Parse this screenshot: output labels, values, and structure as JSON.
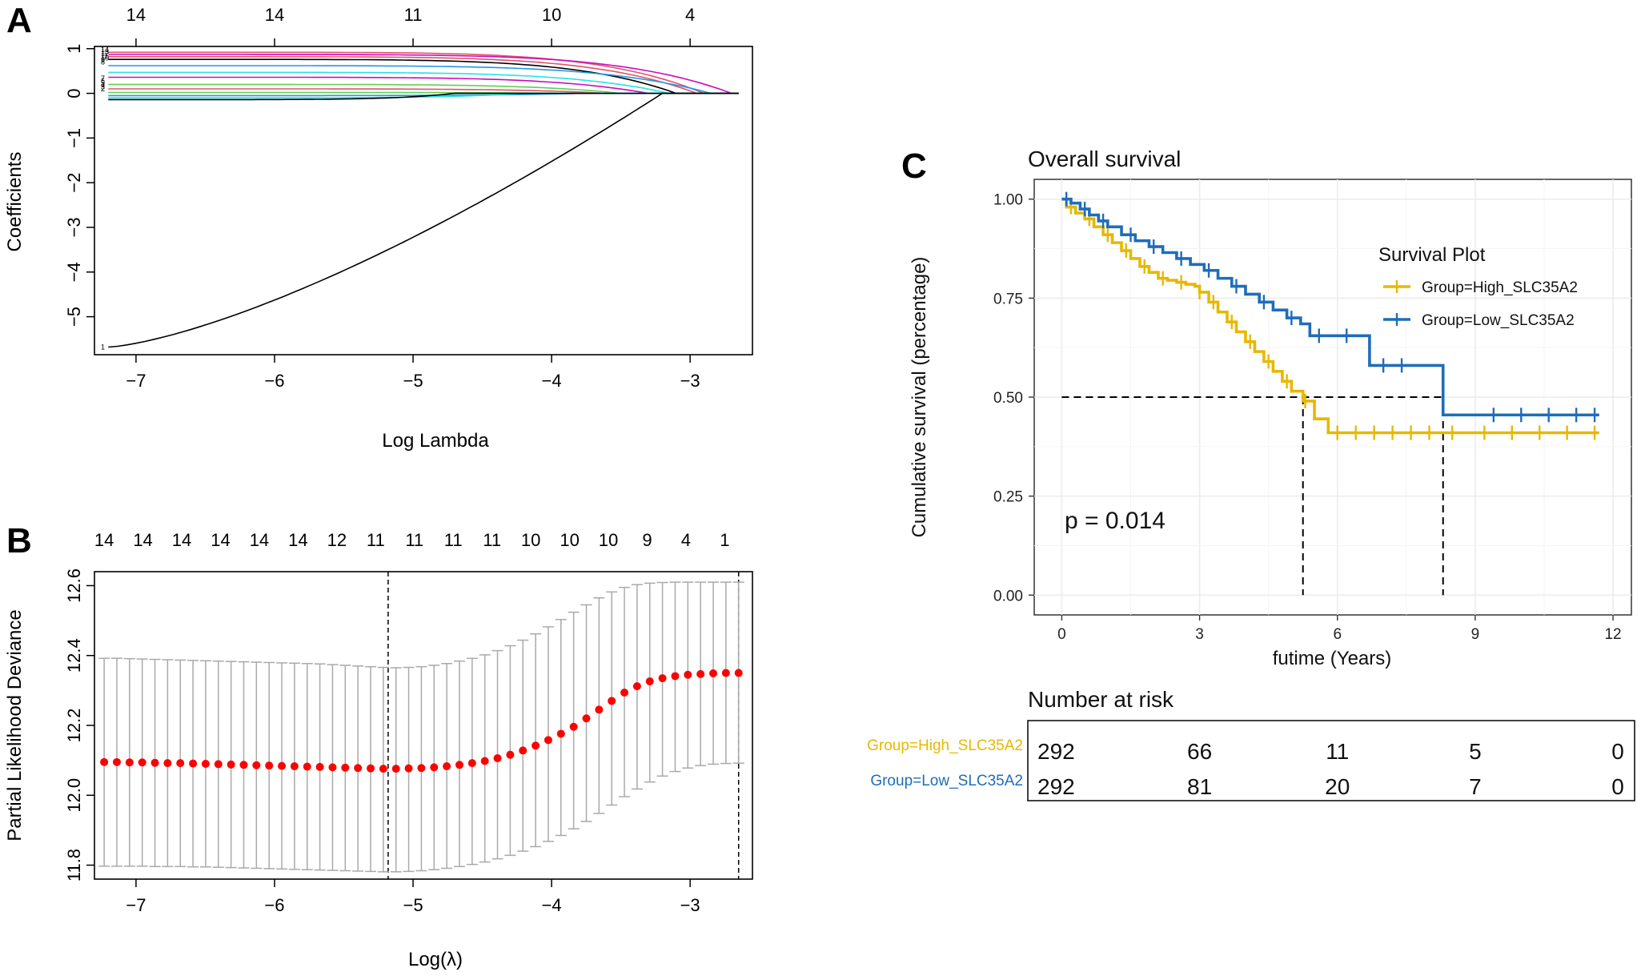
{
  "colors": {
    "high": "#E7B800",
    "low": "#1F6DB9",
    "dev_point": "#FF0000",
    "errbar": "#A9A9A9",
    "path_palette": [
      "#DF536B",
      "#61D04F",
      "#2297E6",
      "#28E2E5",
      "#CD0BBC",
      "#000000"
    ]
  },
  "chart_data": [
    {
      "type": "line",
      "panel": "A",
      "xlabel": "Log Lambda",
      "ylabel": "Coefficients",
      "xlim": [
        -7.3,
        -2.55
      ],
      "ylim": [
        -5.85,
        1.05
      ],
      "x_ticks": [
        -7,
        -6,
        -5,
        -4,
        -3
      ],
      "x_tick_labels": [
        "−7",
        "−6",
        "−5",
        "−4",
        "−3"
      ],
      "y_ticks": [
        -5,
        -4,
        -3,
        -2,
        -1,
        0,
        1
      ],
      "y_tick_labels": [
        "−5",
        "−4",
        "−3",
        "−2",
        "−1",
        "0",
        "1"
      ],
      "top_axis": {
        "x": [
          -7.0,
          -6.0,
          -5.0,
          -4.0,
          -3.0
        ],
        "labels": [
          "14",
          "14",
          "11",
          "10",
          "4"
        ]
      },
      "path_labels": [
        "14",
        "13",
        "12",
        "11",
        "10",
        "9",
        "8",
        "7",
        "6",
        "5",
        "4",
        "3",
        "2",
        "1"
      ],
      "series": [
        {
          "start": 0.92,
          "zero_at": -2.9,
          "color": "#DF536B"
        },
        {
          "start": 0.87,
          "zero_at": -2.7,
          "color": "#CD0BBC"
        },
        {
          "start": 0.82,
          "zero_at": -2.95,
          "color": "#DF536B"
        },
        {
          "start": 0.76,
          "zero_at": -3.1,
          "color": "#000000"
        },
        {
          "start": 0.62,
          "zero_at": -2.85,
          "color": "#2297E6"
        },
        {
          "start": 0.47,
          "zero_at": -3.15,
          "color": "#28E2E5"
        },
        {
          "start": 0.36,
          "zero_at": -3.3,
          "color": "#CD0BBC"
        },
        {
          "start": 0.2,
          "zero_at": -3.5,
          "color": "#61D04F"
        },
        {
          "start": 0.1,
          "zero_at": -3.6,
          "color": "#DF536B"
        },
        {
          "start": 0.02,
          "zero_at": -3.9,
          "color": "#61D04F"
        },
        {
          "start": -0.05,
          "zero_at": -3.8,
          "color": "#2297E6"
        },
        {
          "start": -0.1,
          "zero_at": -4.2,
          "color": "#28E2E5"
        },
        {
          "start": -0.14,
          "zero_at": -4.7,
          "color": "#000000"
        },
        {
          "start": -5.68,
          "zero_at": -3.2,
          "color": "#000000",
          "curve": true
        }
      ]
    },
    {
      "type": "scatter",
      "panel": "B",
      "xlabel": "Log(λ)",
      "ylabel": "Partial Likelihood Deviance",
      "xlim": [
        -7.3,
        -2.55
      ],
      "ylim": [
        11.76,
        12.64
      ],
      "x_ticks": [
        -7,
        -6,
        -5,
        -4,
        -3
      ],
      "x_tick_labels": [
        "−7",
        "−6",
        "−5",
        "−4",
        "−3"
      ],
      "y_ticks": [
        11.8,
        12.0,
        12.2,
        12.4,
        12.6
      ],
      "y_tick_labels": [
        "11.8",
        "12.0",
        "12.2",
        "12.4",
        "12.6"
      ],
      "top_axis": {
        "x": [
          -7.23,
          -6.95,
          -6.67,
          -6.39,
          -6.11,
          -5.83,
          -5.55,
          -5.27,
          -4.99,
          -4.71,
          -4.43,
          -4.15,
          -3.87,
          -3.59,
          -3.31,
          -3.03,
          -2.75
        ],
        "labels": [
          "14",
          "14",
          "14",
          "14",
          "14",
          "14",
          "12",
          "11",
          "11",
          "11",
          "11",
          "10",
          "10",
          "10",
          "9",
          "4",
          "1"
        ]
      },
      "vlines": [
        -5.18,
        -2.65
      ],
      "points": {
        "x_start": -7.23,
        "x_end": -2.65,
        "count": 51,
        "mean": [
          12.095,
          12.095,
          12.094,
          12.094,
          12.093,
          12.092,
          12.092,
          12.091,
          12.09,
          12.089,
          12.088,
          12.087,
          12.086,
          12.085,
          12.084,
          12.083,
          12.082,
          12.081,
          12.08,
          12.079,
          12.078,
          12.077,
          12.076,
          12.076,
          12.077,
          12.078,
          12.08,
          12.083,
          12.087,
          12.092,
          12.098,
          12.106,
          12.116,
          12.128,
          12.142,
          12.158,
          12.176,
          12.196,
          12.22,
          12.245,
          12.27,
          12.294,
          12.312,
          12.326,
          12.335,
          12.341,
          12.345,
          12.347,
          12.349,
          12.35,
          12.35
        ],
        "upper": [
          12.392,
          12.392,
          12.391,
          12.39,
          12.389,
          12.388,
          12.387,
          12.386,
          12.385,
          12.384,
          12.383,
          12.382,
          12.381,
          12.38,
          12.379,
          12.378,
          12.377,
          12.376,
          12.374,
          12.372,
          12.37,
          12.368,
          12.366,
          12.365,
          12.366,
          12.368,
          12.372,
          12.377,
          12.384,
          12.392,
          12.402,
          12.414,
          12.428,
          12.444,
          12.462,
          12.482,
          12.503,
          12.524,
          12.545,
          12.565,
          12.582,
          12.595,
          12.603,
          12.607,
          12.609,
          12.61,
          12.61,
          12.61,
          12.61,
          12.61,
          12.61
        ],
        "lower": [
          11.797,
          11.797,
          11.797,
          11.797,
          11.796,
          11.796,
          11.796,
          11.795,
          11.795,
          11.794,
          11.793,
          11.792,
          11.791,
          11.79,
          11.789,
          11.788,
          11.787,
          11.786,
          11.785,
          11.784,
          11.783,
          11.782,
          11.781,
          11.781,
          11.782,
          11.784,
          11.787,
          11.791,
          11.796,
          11.802,
          11.809,
          11.818,
          11.828,
          11.84,
          11.853,
          11.868,
          11.885,
          11.904,
          11.925,
          11.948,
          11.972,
          11.996,
          12.018,
          12.038,
          12.055,
          12.068,
          12.078,
          12.085,
          12.089,
          12.091,
          12.092
        ]
      }
    },
    {
      "type": "line",
      "panel": "C",
      "title": "Overall survival",
      "xlabel": "futime (Years)",
      "ylabel": "Cumulative survival (percentage)",
      "xlim": [
        -0.6,
        12.4
      ],
      "ylim": [
        -0.05,
        1.05
      ],
      "x_ticks": [
        0,
        3,
        6,
        9,
        12
      ],
      "x_tick_labels": [
        "0",
        "3",
        "6",
        "9",
        "12"
      ],
      "y_ticks": [
        0,
        0.25,
        0.5,
        0.75,
        1.0
      ],
      "y_tick_labels": [
        "0.00",
        "0.25",
        "0.50",
        "0.75",
        "1.00"
      ],
      "legend": {
        "title": "Survival Plot",
        "position": "top-right"
      },
      "p_value": "p = 0.014",
      "median_lines": [
        5.25,
        8.3
      ],
      "series": [
        {
          "name": "Group=High_SLC35A2",
          "color_key": "high",
          "x": [
            0,
            0.1,
            0.3,
            0.5,
            0.7,
            0.9,
            1.1,
            1.3,
            1.5,
            1.7,
            1.9,
            2.1,
            2.3,
            2.5,
            2.7,
            2.9,
            3.0,
            3.2,
            3.4,
            3.6,
            3.8,
            4.0,
            4.2,
            4.4,
            4.6,
            4.8,
            5.0,
            5.25,
            5.5,
            5.8,
            7.0,
            8.5,
            11.7
          ],
          "y": [
            1.0,
            0.98,
            0.965,
            0.95,
            0.93,
            0.91,
            0.89,
            0.87,
            0.85,
            0.83,
            0.815,
            0.8,
            0.795,
            0.79,
            0.785,
            0.78,
            0.765,
            0.74,
            0.715,
            0.69,
            0.665,
            0.64,
            0.615,
            0.59,
            0.565,
            0.54,
            0.515,
            0.49,
            0.445,
            0.41,
            0.41,
            0.41,
            0.41
          ],
          "censor_x": [
            0.2,
            0.6,
            1.0,
            1.4,
            1.8,
            2.2,
            2.6,
            3.0,
            3.3,
            3.7,
            4.1,
            4.5,
            4.9,
            5.3,
            6.0,
            6.4,
            6.8,
            7.2,
            7.6,
            8.0,
            8.5,
            9.2,
            9.8,
            10.4,
            11.0,
            11.6
          ]
        },
        {
          "name": "Group=Low_SLC35A2",
          "color_key": "low",
          "x": [
            0,
            0.2,
            0.4,
            0.6,
            0.8,
            1.0,
            1.3,
            1.6,
            1.9,
            2.2,
            2.5,
            2.8,
            3.1,
            3.4,
            3.7,
            4.0,
            4.3,
            4.6,
            4.9,
            5.2,
            5.4,
            6.7,
            7.6,
            8.3,
            11.7
          ],
          "y": [
            1.0,
            0.99,
            0.975,
            0.96,
            0.945,
            0.93,
            0.91,
            0.895,
            0.88,
            0.865,
            0.85,
            0.835,
            0.82,
            0.8,
            0.78,
            0.76,
            0.74,
            0.72,
            0.7,
            0.685,
            0.655,
            0.58,
            0.58,
            0.455,
            0.455
          ],
          "censor_x": [
            0.1,
            0.5,
            0.9,
            1.5,
            2.0,
            2.6,
            3.2,
            3.8,
            4.4,
            5.0,
            5.6,
            6.2,
            7.0,
            7.4,
            9.4,
            10.0,
            10.6,
            11.2,
            11.6
          ]
        }
      ],
      "risk_table": {
        "title": "Number at risk",
        "times": [
          0,
          3,
          6,
          9,
          12
        ],
        "rows": [
          {
            "label": "Group=High_SLC35A2",
            "color_key": "high",
            "values": [
              "292",
              "66",
              "11",
              "5",
              "0"
            ]
          },
          {
            "label": "Group=Low_SLC35A2",
            "color_key": "low",
            "values": [
              "292",
              "81",
              "20",
              "7",
              "0"
            ]
          }
        ]
      }
    }
  ]
}
